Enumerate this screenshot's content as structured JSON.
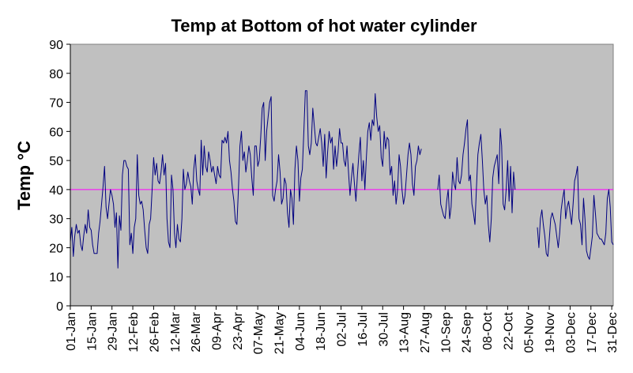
{
  "chart_data": {
    "type": "line",
    "title": "Temp at Bottom of hot water cylinder",
    "xlabel": "",
    "ylabel": "Temp °C",
    "ylim": [
      0,
      90
    ],
    "yticks": [
      0,
      10,
      20,
      30,
      40,
      50,
      60,
      70,
      80,
      90
    ],
    "x_range_days": [
      1,
      366
    ],
    "grid": false,
    "legend": "none",
    "plot_background": "#c0c0c0",
    "series_color": "#000080",
    "reference_line": {
      "value": 40,
      "color": "#ff00ff"
    },
    "xticks": [
      {
        "day": 1,
        "label": "01-Jan"
      },
      {
        "day": 15,
        "label": "15-Jan"
      },
      {
        "day": 29,
        "label": "29-Jan"
      },
      {
        "day": 43,
        "label": "12-Feb"
      },
      {
        "day": 57,
        "label": "26-Feb"
      },
      {
        "day": 71,
        "label": "12-Mar"
      },
      {
        "day": 85,
        "label": "26-Mar"
      },
      {
        "day": 99,
        "label": "09-Apr"
      },
      {
        "day": 113,
        "label": "23-Apr"
      },
      {
        "day": 127,
        "label": "07-May"
      },
      {
        "day": 141,
        "label": "21-May"
      },
      {
        "day": 155,
        "label": "04-Jun"
      },
      {
        "day": 169,
        "label": "18-Jun"
      },
      {
        "day": 183,
        "label": "02-Jul"
      },
      {
        "day": 197,
        "label": "16-Jul"
      },
      {
        "day": 211,
        "label": "30-Jul"
      },
      {
        "day": 225,
        "label": "13-Aug"
      },
      {
        "day": 239,
        "label": "27-Aug"
      },
      {
        "day": 253,
        "label": "10-Sep"
      },
      {
        "day": 267,
        "label": "24-Sep"
      },
      {
        "day": 281,
        "label": "08-Oct"
      },
      {
        "day": 295,
        "label": "22-Oct"
      },
      {
        "day": 309,
        "label": "05-Nov"
      },
      {
        "day": 323,
        "label": "19-Nov"
      },
      {
        "day": 337,
        "label": "03-Dec"
      },
      {
        "day": 351,
        "label": "17-Dec"
      },
      {
        "day": 365,
        "label": "31-Dec"
      }
    ],
    "series": [
      {
        "segments": [
          {
            "x": [
              1,
              2,
              3,
              4,
              5,
              6,
              7,
              8,
              9,
              10,
              11,
              12,
              13,
              14,
              15,
              16,
              17,
              18,
              19,
              20,
              21,
              22,
              23,
              24,
              25,
              26,
              27,
              28,
              29,
              30,
              31,
              32,
              33,
              34,
              35,
              36,
              37,
              38,
              39,
              40,
              41,
              42,
              43,
              44,
              45,
              46,
              47,
              48,
              49,
              50,
              51,
              52,
              53,
              54,
              55,
              56,
              57,
              58,
              59,
              60,
              61,
              62,
              63,
              64,
              65,
              66,
              67,
              68,
              69,
              70,
              71,
              72,
              73,
              74,
              75,
              76,
              77,
              78,
              79,
              80,
              81,
              82,
              83,
              84,
              85,
              86,
              87,
              88,
              89,
              90,
              91,
              92,
              93,
              94,
              95,
              96,
              97,
              98,
              99,
              100,
              101,
              102,
              103,
              104,
              105,
              106,
              107,
              108,
              109,
              110,
              111,
              112,
              113,
              114,
              115,
              116,
              117,
              118,
              119,
              120,
              121,
              122,
              123,
              124,
              125,
              126,
              127,
              128,
              129,
              130,
              131,
              132,
              133,
              134,
              135,
              136,
              137,
              138,
              139,
              140,
              141,
              142,
              143,
              144,
              145,
              146,
              147,
              148,
              149,
              150,
              151,
              152,
              153,
              154,
              155,
              156,
              157,
              158,
              159,
              160,
              161,
              162,
              163,
              164,
              165,
              166,
              167,
              168,
              169,
              170,
              171,
              172,
              173,
              174,
              175,
              176,
              177,
              178,
              179,
              180,
              181,
              182,
              183,
              184,
              185,
              186,
              187,
              188,
              189,
              190,
              191,
              192,
              193,
              194,
              195,
              196,
              197,
              198,
              199,
              200,
              201,
              202,
              203,
              204,
              205,
              206,
              207,
              208,
              209,
              210,
              211,
              212,
              213,
              214,
              215,
              216,
              217,
              218,
              219,
              220,
              221,
              222,
              223,
              224,
              225,
              226,
              227,
              228,
              229,
              230,
              231,
              232,
              233,
              234,
              235,
              236,
              237
            ],
            "y": [
              22,
              27,
              17,
              24,
              28,
              25,
              26,
              21,
              19,
              24,
              28,
              25,
              33,
              27,
              26,
              21,
              18,
              18,
              18,
              25,
              29,
              35,
              41,
              48,
              34,
              30,
              35,
              40,
              38,
              35,
              27,
              32,
              13,
              31,
              26,
              45,
              50,
              50,
              48,
              47,
              21,
              25,
              18,
              27,
              30,
              52,
              38,
              35,
              36,
              33,
              26,
              20,
              18,
              28,
              30,
              40,
              51,
              45,
              49,
              43,
              42,
              46,
              52,
              45,
              49,
              30,
              22,
              20,
              45,
              40,
              25,
              20,
              28,
              23,
              22,
              30,
              47,
              40,
              42,
              46,
              43,
              41,
              35,
              47,
              52,
              43,
              40,
              38,
              57,
              45,
              55,
              48,
              46,
              53,
              50,
              46,
              48,
              45,
              42,
              48,
              45,
              44,
              57,
              56,
              58,
              56,
              60,
              50,
              46,
              40,
              36,
              29,
              28,
              40,
              55,
              60,
              50,
              53,
              46,
              50,
              55,
              52,
              44,
              38,
              55,
              55,
              48,
              50,
              58,
              68,
              70,
              50,
              60,
              65,
              70,
              72,
              38,
              36,
              40,
              43,
              52,
              46,
              35,
              37,
              44,
              42,
              32,
              27,
              40,
              37,
              28,
              47,
              55,
              50,
              36,
              44,
              47,
              60,
              74,
              74,
              55,
              52,
              56,
              68,
              62,
              56,
              55,
              58,
              61,
              56,
              48,
              59,
              44,
              53,
              60,
              56,
              58,
              47,
              55,
              48,
              53,
              61,
              56,
              56,
              50,
              48,
              55,
              46,
              38,
              44,
              49,
              42,
              36,
              45,
              52,
              58,
              43,
              50,
              40,
              51,
              60,
              63,
              57,
              64,
              62,
              73,
              65,
              60,
              62,
              51,
              48,
              60,
              54,
              58,
              57,
              45,
              48,
              38,
              43,
              35,
              40,
              52,
              48,
              40,
              35,
              38,
              45,
              52,
              56,
              52,
              42,
              38,
              48,
              50,
              55,
              52,
              54
            ]
          },
          {
            "x": [
              248,
              249,
              250,
              251,
              252,
              253,
              254,
              255,
              256,
              257,
              258,
              259,
              260,
              261,
              262,
              263,
              264,
              265,
              266,
              267,
              268,
              269,
              270,
              271,
              272,
              273,
              274,
              275,
              276,
              277,
              278,
              279,
              280,
              281,
              282,
              283,
              284,
              285,
              286,
              287,
              288,
              289,
              290,
              291,
              292,
              293,
              294,
              295,
              296,
              297,
              298,
              299,
              300
            ],
            "y": [
              40,
              45,
              35,
              33,
              31,
              30,
              36,
              40,
              30,
              34,
              46,
              42,
              40,
              51,
              43,
              42,
              45,
              52,
              56,
              61,
              64,
              43,
              45,
              35,
              32,
              28,
              40,
              52,
              56,
              59,
              50,
              40,
              35,
              38,
              28,
              22,
              30,
              44,
              48,
              50,
              52,
              42,
              61,
              55,
              35,
              33,
              40,
              50,
              36,
              48,
              32,
              46,
              40
            ]
          },
          {
            "x": [
              315,
              316,
              317,
              318,
              319,
              320,
              321,
              322,
              323,
              324,
              325,
              326,
              327,
              328,
              329,
              330,
              331,
              332,
              333,
              334,
              335,
              336,
              337,
              338,
              339,
              340,
              341,
              342,
              343,
              344,
              345,
              346,
              347,
              348,
              349,
              350,
              351,
              352,
              353,
              354,
              355,
              356,
              357,
              358,
              359,
              360,
              361,
              362,
              363,
              364,
              365,
              366
            ],
            "y": [
              27,
              20,
              30,
              33,
              28,
              24,
              18,
              17,
              23,
              30,
              32,
              30,
              28,
              24,
              20,
              25,
              33,
              37,
              40,
              30,
              34,
              36,
              32,
              28,
              35,
              43,
              45,
              48,
              30,
              28,
              21,
              37,
              30,
              19,
              17,
              16,
              20,
              24,
              38,
              32,
              25,
              24,
              23,
              23,
              22,
              21,
              25,
              37,
              40,
              34,
              22,
              21
            ]
          }
        ]
      }
    ]
  }
}
